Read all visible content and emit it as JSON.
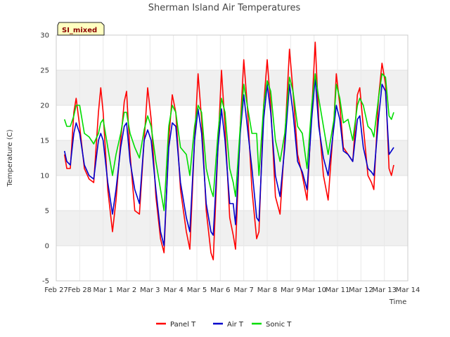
{
  "chart_data": {
    "type": "line",
    "title": "Sherman Island Air Temperatures",
    "badge": "SI_mixed",
    "xlabel": "Time",
    "ylabel": "Temperature (C)",
    "xlim": [
      0,
      15
    ],
    "ylim": [
      -5,
      30
    ],
    "yticks": [
      -5,
      0,
      5,
      10,
      15,
      20,
      25,
      30
    ],
    "xtick_positions": [
      0,
      1,
      2,
      3,
      4,
      5,
      6,
      7,
      8,
      9,
      10,
      11,
      12,
      13,
      14,
      15
    ],
    "xtick_labels": [
      "Feb 27",
      "Feb 28",
      "Mar 1",
      "Mar 2",
      "Mar 3",
      "Mar 4",
      "Mar 5",
      "Mar 6",
      "Mar 7",
      "Mar 8",
      "Mar 9",
      "Mar 10",
      "Mar 11",
      "Mar 12",
      "Mar 13",
      "Mar 14"
    ],
    "bands": [
      [
        0,
        5
      ],
      [
        10,
        15
      ],
      [
        20,
        25
      ]
    ],
    "legend_position": "bottom",
    "series": [
      {
        "name": "Panel T",
        "color": "#ff0000",
        "points": [
          [
            0.35,
            13.0
          ],
          [
            0.45,
            11.0
          ],
          [
            0.6,
            11.0
          ],
          [
            0.75,
            19.0
          ],
          [
            0.85,
            21.0
          ],
          [
            1.0,
            17.0
          ],
          [
            1.2,
            11.0
          ],
          [
            1.4,
            9.5
          ],
          [
            1.6,
            9.0
          ],
          [
            1.8,
            19.0
          ],
          [
            1.9,
            22.5
          ],
          [
            2.0,
            19.0
          ],
          [
            2.2,
            8.0
          ],
          [
            2.4,
            2.0
          ],
          [
            2.55,
            6.5
          ],
          [
            2.75,
            15.0
          ],
          [
            2.9,
            20.5
          ],
          [
            3.0,
            22.0
          ],
          [
            3.15,
            13.0
          ],
          [
            3.35,
            5.0
          ],
          [
            3.55,
            4.5
          ],
          [
            3.75,
            15.0
          ],
          [
            3.9,
            22.5
          ],
          [
            4.05,
            18.0
          ],
          [
            4.25,
            7.0
          ],
          [
            4.45,
            1.0
          ],
          [
            4.6,
            -1.0
          ],
          [
            4.8,
            15.0
          ],
          [
            4.95,
            21.5
          ],
          [
            5.1,
            19.0
          ],
          [
            5.3,
            8.0
          ],
          [
            5.55,
            2.0
          ],
          [
            5.7,
            -0.5
          ],
          [
            5.9,
            15.0
          ],
          [
            6.05,
            24.5
          ],
          [
            6.2,
            18.0
          ],
          [
            6.4,
            5.0
          ],
          [
            6.6,
            -1.0
          ],
          [
            6.7,
            -2.0
          ],
          [
            6.9,
            14.0
          ],
          [
            7.05,
            25.0
          ],
          [
            7.2,
            17.0
          ],
          [
            7.4,
            4.0
          ],
          [
            7.55,
            1.5
          ],
          [
            7.65,
            -0.5
          ],
          [
            7.85,
            17.0
          ],
          [
            8.0,
            26.5
          ],
          [
            8.15,
            20.0
          ],
          [
            8.35,
            8.0
          ],
          [
            8.55,
            1.0
          ],
          [
            8.65,
            2.0
          ],
          [
            8.85,
            20.0
          ],
          [
            9.0,
            26.5
          ],
          [
            9.15,
            20.0
          ],
          [
            9.35,
            7.0
          ],
          [
            9.55,
            4.5
          ],
          [
            9.75,
            15.0
          ],
          [
            9.95,
            28.0
          ],
          [
            10.1,
            22.0
          ],
          [
            10.3,
            13.0
          ],
          [
            10.5,
            10.0
          ],
          [
            10.7,
            6.5
          ],
          [
            10.9,
            19.0
          ],
          [
            11.05,
            29.0
          ],
          [
            11.2,
            18.0
          ],
          [
            11.4,
            10.0
          ],
          [
            11.6,
            6.5
          ],
          [
            11.85,
            18.0
          ],
          [
            11.95,
            24.5
          ],
          [
            12.1,
            20.0
          ],
          [
            12.25,
            14.0
          ],
          [
            12.45,
            13.0
          ],
          [
            12.65,
            12.0
          ],
          [
            12.85,
            21.5
          ],
          [
            12.95,
            22.5
          ],
          [
            13.1,
            17.0
          ],
          [
            13.3,
            10.0
          ],
          [
            13.45,
            9.0
          ],
          [
            13.55,
            8.0
          ],
          [
            13.75,
            21.0
          ],
          [
            13.9,
            26.0
          ],
          [
            14.05,
            23.0
          ],
          [
            14.2,
            11.0
          ],
          [
            14.3,
            10.0
          ],
          [
            14.4,
            11.5
          ]
        ]
      },
      {
        "name": "Air T",
        "color": "#0000cc",
        "points": [
          [
            0.35,
            13.5
          ],
          [
            0.45,
            12.0
          ],
          [
            0.6,
            11.5
          ],
          [
            0.75,
            16.0
          ],
          [
            0.85,
            17.5
          ],
          [
            1.0,
            16.0
          ],
          [
            1.2,
            11.5
          ],
          [
            1.4,
            10.0
          ],
          [
            1.6,
            9.5
          ],
          [
            1.8,
            15.0
          ],
          [
            1.9,
            16.0
          ],
          [
            2.0,
            15.0
          ],
          [
            2.2,
            9.0
          ],
          [
            2.4,
            4.5
          ],
          [
            2.55,
            8.0
          ],
          [
            2.75,
            14.0
          ],
          [
            2.9,
            17.0
          ],
          [
            3.0,
            17.5
          ],
          [
            3.15,
            12.0
          ],
          [
            3.35,
            8.0
          ],
          [
            3.55,
            6.0
          ],
          [
            3.75,
            15.0
          ],
          [
            3.9,
            16.5
          ],
          [
            4.05,
            15.0
          ],
          [
            4.25,
            8.0
          ],
          [
            4.45,
            2.0
          ],
          [
            4.6,
            0.0
          ],
          [
            4.8,
            14.0
          ],
          [
            4.95,
            17.5
          ],
          [
            5.1,
            17.0
          ],
          [
            5.3,
            9.0
          ],
          [
            5.55,
            4.0
          ],
          [
            5.7,
            2.0
          ],
          [
            5.9,
            15.0
          ],
          [
            6.05,
            19.5
          ],
          [
            6.2,
            16.0
          ],
          [
            6.4,
            6.0
          ],
          [
            6.6,
            2.0
          ],
          [
            6.7,
            1.5
          ],
          [
            6.9,
            14.0
          ],
          [
            7.05,
            19.5
          ],
          [
            7.2,
            15.0
          ],
          [
            7.4,
            6.0
          ],
          [
            7.55,
            6.0
          ],
          [
            7.65,
            3.0
          ],
          [
            7.85,
            16.0
          ],
          [
            8.0,
            21.5
          ],
          [
            8.15,
            17.0
          ],
          [
            8.35,
            11.0
          ],
          [
            8.55,
            4.0
          ],
          [
            8.65,
            3.5
          ],
          [
            8.85,
            18.0
          ],
          [
            9.0,
            23.0
          ],
          [
            9.15,
            19.0
          ],
          [
            9.35,
            10.0
          ],
          [
            9.55,
            7.0
          ],
          [
            9.75,
            14.0
          ],
          [
            9.95,
            23.0
          ],
          [
            10.1,
            19.0
          ],
          [
            10.3,
            12.0
          ],
          [
            10.5,
            10.5
          ],
          [
            10.7,
            8.0
          ],
          [
            10.9,
            18.0
          ],
          [
            11.05,
            24.0
          ],
          [
            11.2,
            17.0
          ],
          [
            11.4,
            12.5
          ],
          [
            11.6,
            10.0
          ],
          [
            11.85,
            17.0
          ],
          [
            11.95,
            20.0
          ],
          [
            12.1,
            18.0
          ],
          [
            12.25,
            13.5
          ],
          [
            12.45,
            13.0
          ],
          [
            12.65,
            12.0
          ],
          [
            12.85,
            18.0
          ],
          [
            12.95,
            18.5
          ],
          [
            13.1,
            14.0
          ],
          [
            13.3,
            11.0
          ],
          [
            13.45,
            10.5
          ],
          [
            13.55,
            10.0
          ],
          [
            13.75,
            18.0
          ],
          [
            13.9,
            23.0
          ],
          [
            14.05,
            22.0
          ],
          [
            14.2,
            13.0
          ],
          [
            14.3,
            13.5
          ],
          [
            14.4,
            14.0
          ]
        ]
      },
      {
        "name": "Sonic T",
        "color": "#00dd00",
        "points": [
          [
            0.35,
            18.0
          ],
          [
            0.45,
            17.0
          ],
          [
            0.6,
            17.0
          ],
          [
            0.75,
            18.5
          ],
          [
            0.85,
            20.0
          ],
          [
            1.0,
            20.0
          ],
          [
            1.2,
            16.0
          ],
          [
            1.4,
            15.5
          ],
          [
            1.6,
            14.5
          ],
          [
            1.8,
            16.0
          ],
          [
            1.9,
            17.5
          ],
          [
            2.0,
            18.0
          ],
          [
            2.2,
            14.0
          ],
          [
            2.4,
            10.0
          ],
          [
            2.55,
            13.0
          ],
          [
            2.75,
            16.0
          ],
          [
            2.9,
            19.0
          ],
          [
            3.0,
            19.0
          ],
          [
            3.15,
            16.0
          ],
          [
            3.35,
            14.0
          ],
          [
            3.55,
            12.5
          ],
          [
            3.75,
            16.5
          ],
          [
            3.9,
            18.5
          ],
          [
            4.05,
            17.0
          ],
          [
            4.25,
            12.0
          ],
          [
            4.45,
            8.0
          ],
          [
            4.6,
            5.0
          ],
          [
            4.8,
            17.0
          ],
          [
            4.95,
            20.0
          ],
          [
            5.1,
            19.0
          ],
          [
            5.3,
            14.0
          ],
          [
            5.55,
            13.0
          ],
          [
            5.7,
            10.0
          ],
          [
            5.9,
            17.0
          ],
          [
            6.05,
            20.0
          ],
          [
            6.2,
            19.0
          ],
          [
            6.4,
            11.0
          ],
          [
            6.6,
            8.0
          ],
          [
            6.7,
            7.0
          ],
          [
            6.9,
            16.0
          ],
          [
            7.05,
            21.0
          ],
          [
            7.2,
            19.0
          ],
          [
            7.4,
            11.0
          ],
          [
            7.55,
            9.0
          ],
          [
            7.65,
            7.0
          ],
          [
            7.85,
            17.0
          ],
          [
            8.0,
            23.0
          ],
          [
            8.15,
            20.0
          ],
          [
            8.35,
            16.0
          ],
          [
            8.55,
            16.0
          ],
          [
            8.65,
            10.0
          ],
          [
            8.85,
            20.0
          ],
          [
            9.0,
            23.5
          ],
          [
            9.15,
            22.0
          ],
          [
            9.35,
            15.0
          ],
          [
            9.55,
            12.0
          ],
          [
            9.75,
            16.0
          ],
          [
            9.95,
            24.0
          ],
          [
            10.1,
            22.0
          ],
          [
            10.3,
            17.0
          ],
          [
            10.5,
            16.0
          ],
          [
            10.7,
            11.0
          ],
          [
            10.9,
            20.0
          ],
          [
            11.05,
            24.5
          ],
          [
            11.2,
            21.0
          ],
          [
            11.4,
            17.0
          ],
          [
            11.6,
            13.0
          ],
          [
            11.85,
            18.0
          ],
          [
            11.95,
            23.0
          ],
          [
            12.1,
            21.0
          ],
          [
            12.25,
            17.5
          ],
          [
            12.45,
            18.0
          ],
          [
            12.65,
            15.0
          ],
          [
            12.85,
            20.0
          ],
          [
            12.95,
            21.0
          ],
          [
            13.1,
            20.0
          ],
          [
            13.3,
            17.0
          ],
          [
            13.45,
            16.5
          ],
          [
            13.55,
            15.5
          ],
          [
            13.75,
            21.0
          ],
          [
            13.9,
            24.5
          ],
          [
            14.05,
            24.0
          ],
          [
            14.2,
            18.5
          ],
          [
            14.3,
            18.0
          ],
          [
            14.4,
            19.0
          ]
        ]
      }
    ]
  }
}
